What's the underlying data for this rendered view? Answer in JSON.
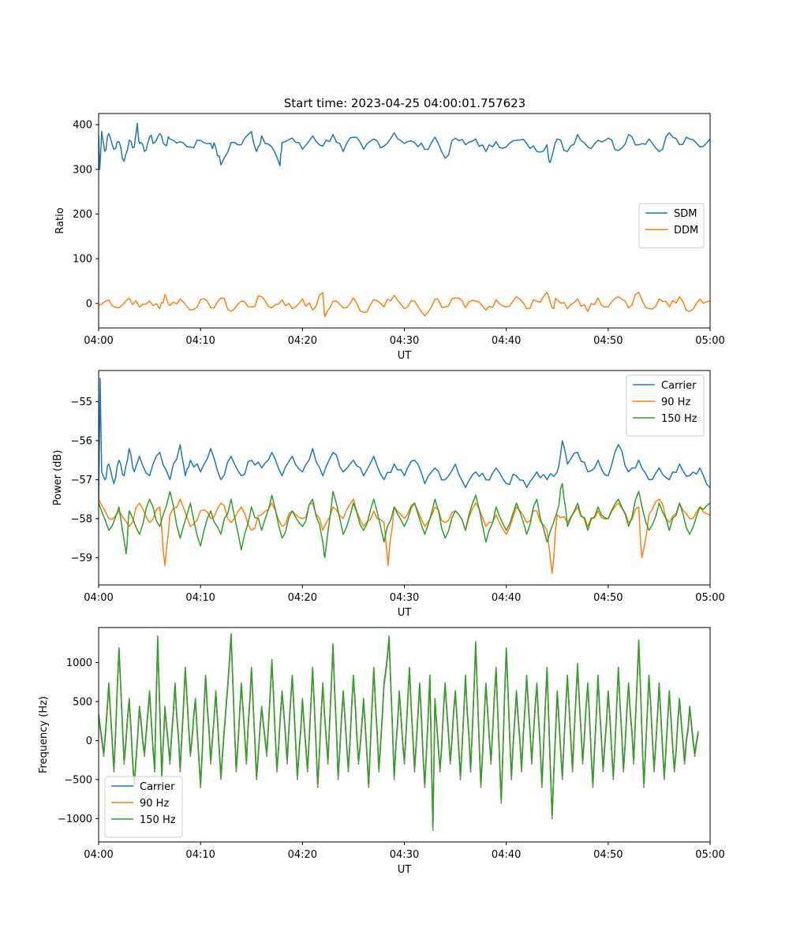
{
  "figure": {
    "title": "Start time: 2023-04-25 04:00:01.757623"
  },
  "colors": {
    "blue": "#1f77b4",
    "orange": "#ff7f0e",
    "green": "#2ca02c"
  },
  "chart_data": [
    {
      "type": "line",
      "title": "Start time: 2023-04-25 04:00:01.757623",
      "xlabel": "UT",
      "ylabel": "Ratio",
      "x_range": [
        "04:00",
        "05:00"
      ],
      "x_ticks": [
        "04:00",
        "04:10",
        "04:20",
        "04:30",
        "04:40",
        "04:50",
        "05:00"
      ],
      "ylim": [
        -55,
        425
      ],
      "y_ticks": [
        0,
        100,
        200,
        300,
        400
      ],
      "legend": "center-right",
      "series": [
        {
          "name": "SDM",
          "color": "#1f77b4",
          "minutes": [
            0,
            0.1,
            0.3,
            0.6,
            1,
            1.5,
            2,
            2.5,
            3,
            3.5,
            3.8,
            4,
            4.5,
            5,
            5.5,
            6,
            6.5,
            7,
            8,
            9,
            10,
            11,
            11.5,
            12,
            13,
            14,
            15,
            15.5,
            16,
            17,
            17.8,
            18,
            19,
            20,
            21,
            22,
            23,
            24,
            25,
            26,
            27,
            28,
            29,
            30,
            31,
            32,
            33,
            34,
            35,
            36,
            37,
            38,
            39,
            40,
            41,
            42,
            43,
            44,
            44.3,
            45,
            46,
            47,
            48,
            49,
            50,
            51,
            52,
            53,
            54,
            55,
            56,
            57,
            58,
            59,
            60
          ],
          "values": [
            375,
            300,
            385,
            340,
            380,
            345,
            362,
            318,
            365,
            350,
            403,
            358,
            340,
            372,
            360,
            380,
            355,
            368,
            362,
            350,
            365,
            358,
            348,
            310,
            360,
            355,
            385,
            340,
            375,
            350,
            308,
            360,
            370,
            345,
            375,
            352,
            378,
            340,
            372,
            345,
            368,
            352,
            382,
            358,
            360,
            345,
            372,
            325,
            370,
            355,
            368,
            340,
            362,
            350,
            365,
            358,
            340,
            355,
            315,
            368,
            340,
            378,
            350,
            365,
            370,
            342,
            378,
            355,
            368,
            340,
            382,
            355,
            368,
            350,
            368
          ]
        },
        {
          "name": "DDM",
          "color": "#ff7f0e",
          "minutes": [
            0,
            1,
            2,
            3,
            4,
            5,
            6,
            6.5,
            7,
            8,
            9,
            10,
            11,
            12,
            13,
            14,
            15,
            16,
            17,
            18,
            19,
            20,
            21,
            22,
            22.2,
            23,
            24,
            25,
            26,
            27,
            28,
            29,
            30,
            31,
            32,
            33,
            34,
            35,
            36,
            37,
            38,
            39,
            40,
            41,
            42,
            43,
            44,
            44.5,
            45,
            46,
            47,
            48,
            49,
            50,
            51,
            52,
            53,
            54,
            55,
            56,
            57,
            58,
            59,
            60
          ],
          "values": [
            -5,
            8,
            -10,
            12,
            -8,
            5,
            -12,
            20,
            -5,
            10,
            -15,
            8,
            -10,
            12,
            -18,
            5,
            -8,
            15,
            -10,
            8,
            -12,
            10,
            -15,
            24,
            -30,
            5,
            -10,
            12,
            -20,
            8,
            -8,
            18,
            -12,
            5,
            -28,
            10,
            -8,
            12,
            -10,
            5,
            -15,
            8,
            -8,
            15,
            -12,
            5,
            25,
            -10,
            8,
            -12,
            10,
            -18,
            12,
            -8,
            15,
            -10,
            25,
            -12,
            10,
            -8,
            15,
            -18,
            10,
            5
          ]
        }
      ]
    },
    {
      "type": "line",
      "xlabel": "UT",
      "ylabel": "Power (dB)",
      "x_range": [
        "04:00",
        "05:00"
      ],
      "x_ticks": [
        "04:00",
        "04:10",
        "04:20",
        "04:30",
        "04:40",
        "04:50",
        "05:00"
      ],
      "ylim": [
        -59.7,
        -54.2
      ],
      "y_ticks": [
        -59,
        -58,
        -57,
        -56,
        -55
      ],
      "legend": "top-right",
      "series": [
        {
          "name": "Carrier",
          "color": "#1f77b4",
          "minutes": [
            0,
            0.15,
            0.3,
            0.6,
            1,
            1.5,
            2,
            2.5,
            3,
            3.5,
            4,
            5,
            6,
            7,
            8,
            8.5,
            9,
            10,
            11,
            12,
            13,
            14,
            15,
            16,
            17,
            18,
            19,
            20,
            21,
            22,
            23,
            24,
            25,
            26,
            27,
            28,
            29,
            30,
            31,
            32,
            33,
            34,
            35,
            36,
            37,
            38,
            39,
            40,
            41,
            42,
            43,
            44,
            45,
            45.5,
            46,
            47,
            48,
            49,
            50,
            51,
            52,
            53,
            54,
            55,
            56,
            57,
            58,
            59,
            60
          ],
          "values": [
            -57.6,
            -54.4,
            -56.8,
            -57.0,
            -56.6,
            -57.1,
            -56.5,
            -56.9,
            -56.2,
            -56.8,
            -56.4,
            -56.9,
            -56.3,
            -57.0,
            -56.1,
            -56.9,
            -56.5,
            -56.8,
            -56.2,
            -57.0,
            -56.4,
            -56.9,
            -56.5,
            -56.7,
            -56.3,
            -56.9,
            -56.4,
            -56.8,
            -56.2,
            -56.9,
            -56.3,
            -56.8,
            -56.5,
            -56.9,
            -56.4,
            -57.0,
            -56.6,
            -56.9,
            -56.5,
            -57.1,
            -56.7,
            -57.0,
            -56.6,
            -57.2,
            -56.8,
            -57.0,
            -56.7,
            -57.1,
            -56.9,
            -57.2,
            -56.8,
            -57.0,
            -56.8,
            -56.0,
            -56.6,
            -56.3,
            -56.8,
            -56.5,
            -56.9,
            -56.1,
            -56.8,
            -56.5,
            -57.0,
            -56.7,
            -57.0,
            -56.6,
            -56.9,
            -56.7,
            -57.2
          ]
        },
        {
          "name": "90 Hz",
          "color": "#ff7f0e",
          "minutes": [
            0,
            1,
            2,
            3,
            4,
            5,
            6,
            6.5,
            7,
            8,
            9,
            10,
            11,
            12,
            13,
            14,
            15,
            16,
            17,
            18,
            19,
            20,
            21,
            22,
            23,
            24,
            25,
            26,
            27,
            28,
            28.4,
            29,
            30,
            31,
            32,
            33,
            34,
            35,
            36,
            37,
            38,
            39,
            40,
            41,
            42,
            43,
            44,
            44.5,
            45,
            46,
            47,
            48,
            49,
            50,
            51,
            52,
            53,
            53.3,
            54,
            55,
            56,
            57,
            58,
            59,
            60
          ],
          "values": [
            -57.5,
            -58.0,
            -57.8,
            -58.2,
            -57.6,
            -58.1,
            -57.7,
            -59.2,
            -57.9,
            -57.5,
            -58.2,
            -57.8,
            -58.0,
            -57.6,
            -58.1,
            -57.7,
            -58.3,
            -57.9,
            -57.6,
            -58.2,
            -57.8,
            -58.0,
            -57.6,
            -58.3,
            -57.7,
            -58.0,
            -57.5,
            -58.2,
            -57.8,
            -58.1,
            -59.2,
            -57.7,
            -58.0,
            -57.6,
            -58.2,
            -57.7,
            -58.1,
            -57.8,
            -58.3,
            -57.6,
            -58.2,
            -57.9,
            -58.4,
            -57.7,
            -58.1,
            -57.8,
            -58.3,
            -59.4,
            -57.9,
            -58.1,
            -57.7,
            -58.2,
            -57.8,
            -58.0,
            -57.6,
            -58.1,
            -57.7,
            -59.0,
            -57.9,
            -57.5,
            -58.1,
            -57.6,
            -58.0,
            -57.7,
            -57.9
          ]
        },
        {
          "name": "150 Hz",
          "color": "#2ca02c",
          "minutes": [
            0,
            1,
            2,
            2.7,
            3,
            4,
            5,
            6,
            7,
            8,
            9,
            10,
            11,
            12,
            13,
            14,
            15,
            16,
            17,
            18,
            19,
            20,
            21,
            22,
            22.2,
            23,
            24,
            25,
            26,
            27,
            28,
            29,
            30,
            31,
            32,
            33,
            34,
            35,
            36,
            37,
            38,
            39,
            40,
            41,
            42,
            43,
            44,
            45,
            45.5,
            46,
            47,
            48,
            49,
            50,
            51,
            52,
            53,
            54,
            55,
            56,
            57,
            58,
            59,
            60
          ],
          "values": [
            -57.6,
            -58.3,
            -57.7,
            -58.9,
            -57.8,
            -58.4,
            -57.5,
            -58.2,
            -57.3,
            -58.5,
            -57.6,
            -58.7,
            -57.8,
            -58.4,
            -57.5,
            -58.8,
            -57.7,
            -58.3,
            -57.4,
            -58.5,
            -57.8,
            -58.2,
            -57.5,
            -58.6,
            -59.0,
            -57.3,
            -58.4,
            -57.6,
            -58.3,
            -57.5,
            -58.6,
            -57.7,
            -58.2,
            -57.6,
            -58.4,
            -57.5,
            -58.5,
            -57.8,
            -58.3,
            -57.4,
            -58.6,
            -57.7,
            -58.3,
            -57.6,
            -58.4,
            -57.5,
            -58.6,
            -57.8,
            -57.1,
            -58.2,
            -57.6,
            -58.3,
            -57.7,
            -58.0,
            -57.5,
            -58.2,
            -57.3,
            -58.3,
            -57.6,
            -58.3,
            -57.6,
            -58.4,
            -57.7,
            -57.6
          ]
        }
      ]
    },
    {
      "type": "line",
      "xlabel": "UT",
      "ylabel": "Frequency (Hz)",
      "x_range": [
        "04:00",
        "05:00"
      ],
      "x_ticks": [
        "04:00",
        "04:10",
        "04:20",
        "04:30",
        "04:40",
        "04:50",
        "05:00"
      ],
      "ylim": [
        -1300,
        1450
      ],
      "y_ticks": [
        -1000,
        -500,
        0,
        500,
        1000
      ],
      "legend": "bottom-left",
      "series": [
        {
          "name": "Carrier",
          "color": "#1f77b4",
          "offset": -40,
          "minutes": [
            0,
            0.5,
            1,
            1.5,
            2,
            2.5,
            3,
            3.5,
            4,
            4.5,
            5,
            5.5,
            5.8,
            6.2,
            6.5,
            7,
            7.5,
            8,
            8.5,
            9,
            9.5,
            10,
            10.5,
            11,
            11.5,
            12,
            12.5,
            13,
            13.5,
            14,
            14.5,
            15,
            15.5,
            16,
            16.5,
            17,
            17.5,
            18,
            18.5,
            19,
            19.5,
            20,
            20.5,
            21,
            21.5,
            22,
            22.5,
            23,
            23.5,
            24,
            24.5,
            25,
            25.5,
            26,
            26.5,
            27,
            27.5,
            28,
            28.5,
            29,
            29.5,
            30,
            30.5,
            31,
            31.5,
            32,
            32.5,
            32.8,
            33,
            33.5,
            34,
            34.5,
            35,
            35.5,
            36,
            36.5,
            37,
            37.5,
            38,
            38.5,
            39,
            39.5,
            40,
            40.5,
            41,
            41.5,
            42,
            42.5,
            43,
            43.5,
            44,
            44.5,
            45,
            45.5,
            46,
            46.5,
            47,
            47.5,
            48,
            48.5,
            49,
            49.5,
            50,
            50.5,
            51,
            51.5,
            52,
            52.5,
            53,
            53.5,
            54,
            54.5,
            55,
            55.5,
            56,
            56.5,
            57,
            57.5,
            58,
            58.5,
            59,
            59.5,
            60
          ],
          "values": [
            300,
            -200,
            700,
            -400,
            1150,
            -300,
            500,
            -600,
            400,
            -200,
            600,
            -400,
            1300,
            -500,
            400,
            -300,
            700,
            -400,
            900,
            -200,
            500,
            -600,
            800,
            -300,
            600,
            -500,
            400,
            1330,
            -400,
            700,
            -300,
            900,
            -500,
            400,
            -200,
            1000,
            -400,
            600,
            -300,
            800,
            -500,
            500,
            -400,
            900,
            -600,
            700,
            -300,
            1200,
            -500,
            600,
            -400,
            800,
            -300,
            500,
            -600,
            900,
            -400,
            700,
            1300,
            -500,
            600,
            -300,
            900,
            -400,
            700,
            -600,
            800,
            -1150,
            500,
            -400,
            700,
            -300,
            600,
            -500,
            800,
            -400,
            1230,
            -600,
            700,
            -300,
            900,
            -800,
            1150,
            -500,
            600,
            -400,
            800,
            -300,
            700,
            -600,
            900,
            -1000,
            600,
            -500,
            800,
            -400,
            950,
            -300,
            700,
            -600,
            800,
            -400,
            600,
            -500,
            900,
            -400,
            700,
            -300,
            1250,
            -600,
            800,
            -400,
            700,
            -500,
            600,
            -400,
            500,
            -300,
            400,
            -200,
            300
          ]
        },
        {
          "name": "90 Hz",
          "color": "#ff7f0e",
          "offset": -20,
          "same_shape_as": "Carrier"
        },
        {
          "name": "150 Hz",
          "color": "#2ca02c",
          "offset": 0,
          "same_shape_as": "Carrier"
        }
      ]
    }
  ]
}
